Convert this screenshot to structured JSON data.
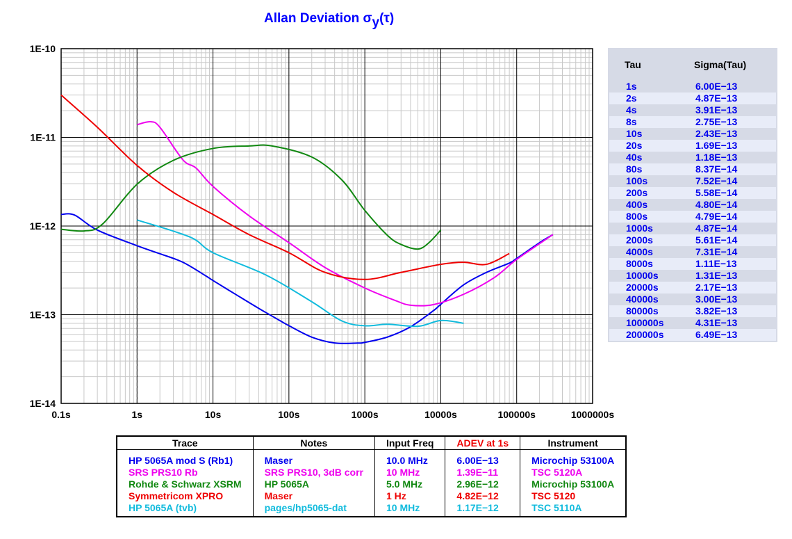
{
  "chart_data": {
    "type": "line",
    "title": "Allan Deviation σy(τ)",
    "title_main": "Allan Deviation σ",
    "title_sub": "y",
    "title_end": "(τ)",
    "xscale": "log",
    "yscale": "log",
    "xlim": [
      0.1,
      1000000
    ],
    "ylim": [
      1e-14,
      1e-10
    ],
    "xticks": [
      "0.1s",
      "1s",
      "10s",
      "100s",
      "1000s",
      "10000s",
      "100000s",
      "1000000s"
    ],
    "yticks": [
      "1E-10",
      "1E-11",
      "1E-12",
      "1E-13",
      "1E-14"
    ],
    "grid": true,
    "marker_line_tau": 1,
    "series": [
      {
        "name": "HP 5065A mod S (Rb1)",
        "color": "#0000ee",
        "points": [
          [
            0.1,
            1.35e-12
          ],
          [
            0.15,
            1.33e-12
          ],
          [
            0.3,
            9e-13
          ],
          [
            1,
            6e-13
          ],
          [
            2,
            4.87e-13
          ],
          [
            4,
            3.91e-13
          ],
          [
            8,
            2.75e-13
          ],
          [
            10,
            2.43e-13
          ],
          [
            20,
            1.69e-13
          ],
          [
            40,
            1.18e-13
          ],
          [
            80,
            8.37e-14
          ],
          [
            100,
            7.52e-14
          ],
          [
            200,
            5.58e-14
          ],
          [
            400,
            4.8e-14
          ],
          [
            800,
            4.79e-14
          ],
          [
            1000,
            4.87e-14
          ],
          [
            2000,
            5.61e-14
          ],
          [
            4000,
            7.31e-14
          ],
          [
            8000,
            1.11e-13
          ],
          [
            10000,
            1.31e-13
          ],
          [
            20000,
            2.17e-13
          ],
          [
            40000,
            3e-13
          ],
          [
            80000,
            3.82e-13
          ],
          [
            100000,
            4.31e-13
          ],
          [
            200000,
            6.49e-13
          ],
          [
            300000,
            8e-13
          ]
        ]
      },
      {
        "name": "SRS PRS10 Rb",
        "color": "#ee00ee",
        "points": [
          [
            1,
            1.39e-11
          ],
          [
            1.5,
            1.5e-11
          ],
          [
            2,
            1.3e-11
          ],
          [
            4,
            5.6e-12
          ],
          [
            6,
            4.5e-12
          ],
          [
            10,
            2.8e-12
          ],
          [
            30,
            1.3e-12
          ],
          [
            100,
            6.5e-13
          ],
          [
            300,
            3.4e-13
          ],
          [
            1000,
            2e-13
          ],
          [
            2500,
            1.45e-13
          ],
          [
            4000,
            1.28e-13
          ],
          [
            8000,
            1.3e-13
          ],
          [
            20000,
            1.7e-13
          ],
          [
            50000,
            2.6e-13
          ],
          [
            100000,
            4.2e-13
          ],
          [
            300000,
            8e-13
          ]
        ]
      },
      {
        "name": "Rohde & Schwarz XSRM",
        "color": "#118811",
        "points": [
          [
            0.1,
            9.2e-13
          ],
          [
            0.2,
            8.8e-13
          ],
          [
            0.35,
            1.05e-12
          ],
          [
            1,
            2.96e-12
          ],
          [
            3,
            5.5e-12
          ],
          [
            10,
            7.5e-12
          ],
          [
            30,
            8e-12
          ],
          [
            60,
            8e-12
          ],
          [
            200,
            6e-12
          ],
          [
            500,
            3.3e-12
          ],
          [
            1000,
            1.5e-12
          ],
          [
            2000,
            7.8e-13
          ],
          [
            3000,
            6.2e-13
          ],
          [
            5000,
            5.5e-13
          ],
          [
            7000,
            6.5e-13
          ],
          [
            10000,
            9e-13
          ]
        ]
      },
      {
        "name": "Symmetricom XPRO",
        "color": "#ee0000",
        "points": [
          [
            0.1,
            3e-11
          ],
          [
            0.3,
            1.3e-11
          ],
          [
            1,
            4.82e-12
          ],
          [
            3,
            2.4e-12
          ],
          [
            10,
            1.35e-12
          ],
          [
            30,
            8e-13
          ],
          [
            100,
            5e-13
          ],
          [
            300,
            3e-13
          ],
          [
            1000,
            2.5e-13
          ],
          [
            3000,
            3e-13
          ],
          [
            10000,
            3.7e-13
          ],
          [
            20000,
            3.9e-13
          ],
          [
            40000,
            3.7e-13
          ],
          [
            80000,
            4.9e-13
          ]
        ]
      },
      {
        "name": "HP 5065A (tvb)",
        "color": "#11bbdd",
        "points": [
          [
            1,
            1.17e-12
          ],
          [
            5,
            7.5e-13
          ],
          [
            10,
            5e-13
          ],
          [
            50,
            2.8e-13
          ],
          [
            200,
            1.4e-13
          ],
          [
            500,
            8.5e-14
          ],
          [
            1000,
            7.5e-14
          ],
          [
            2000,
            7.8e-14
          ],
          [
            5000,
            7.4e-14
          ],
          [
            10000,
            8.6e-14
          ],
          [
            20000,
            8e-14
          ]
        ]
      }
    ]
  },
  "tau_table": {
    "headers": [
      "Tau",
      "Sigma(Tau)"
    ],
    "rows": [
      [
        "1s",
        "6.00E−13"
      ],
      [
        "2s",
        "4.87E−13"
      ],
      [
        "4s",
        "3.91E−13"
      ],
      [
        "8s",
        "2.75E−13"
      ],
      [
        "10s",
        "2.43E−13"
      ],
      [
        "20s",
        "1.69E−13"
      ],
      [
        "40s",
        "1.18E−13"
      ],
      [
        "80s",
        "8.37E−14"
      ],
      [
        "100s",
        "7.52E−14"
      ],
      [
        "200s",
        "5.58E−14"
      ],
      [
        "400s",
        "4.80E−14"
      ],
      [
        "800s",
        "4.79E−14"
      ],
      [
        "1000s",
        "4.87E−14"
      ],
      [
        "2000s",
        "5.61E−14"
      ],
      [
        "4000s",
        "7.31E−14"
      ],
      [
        "8000s",
        "1.11E−13"
      ],
      [
        "10000s",
        "1.31E−13"
      ],
      [
        "20000s",
        "2.17E−13"
      ],
      [
        "40000s",
        "3.00E−13"
      ],
      [
        "80000s",
        "3.82E−13"
      ],
      [
        "100000s",
        "4.31E−13"
      ],
      [
        "200000s",
        "6.49E−13"
      ]
    ]
  },
  "legend": {
    "headers": [
      "Trace",
      "Notes",
      "Input Freq",
      "ADEV at 1s",
      "Instrument"
    ],
    "adev_header_color": "#ee0000",
    "rows": [
      {
        "color": "#0000ee",
        "cells": [
          "HP 5065A mod S (Rb1)",
          "Maser",
          "10.0 MHz",
          "6.00E−13",
          "Microchip 53100A"
        ]
      },
      {
        "color": "#ee00ee",
        "cells": [
          "SRS PRS10 Rb",
          "SRS PRS10, 3dB corr",
          "10 MHz",
          "1.39E−11",
          "TSC 5120A"
        ]
      },
      {
        "color": "#118811",
        "cells": [
          "Rohde & Schwarz XSRM",
          "HP 5065A",
          "5.0 MHz",
          "2.96E−12",
          "Microchip 53100A"
        ]
      },
      {
        "color": "#ee0000",
        "cells": [
          "Symmetricom XPRO",
          "Maser",
          "1 Hz",
          "4.82E−12",
          "TSC 5120"
        ]
      },
      {
        "color": "#11bbdd",
        "cells": [
          "HP 5065A (tvb)",
          "pages/hp5065-dat",
          "10 MHz",
          "1.17E−12",
          "TSC 5110A"
        ]
      }
    ]
  }
}
